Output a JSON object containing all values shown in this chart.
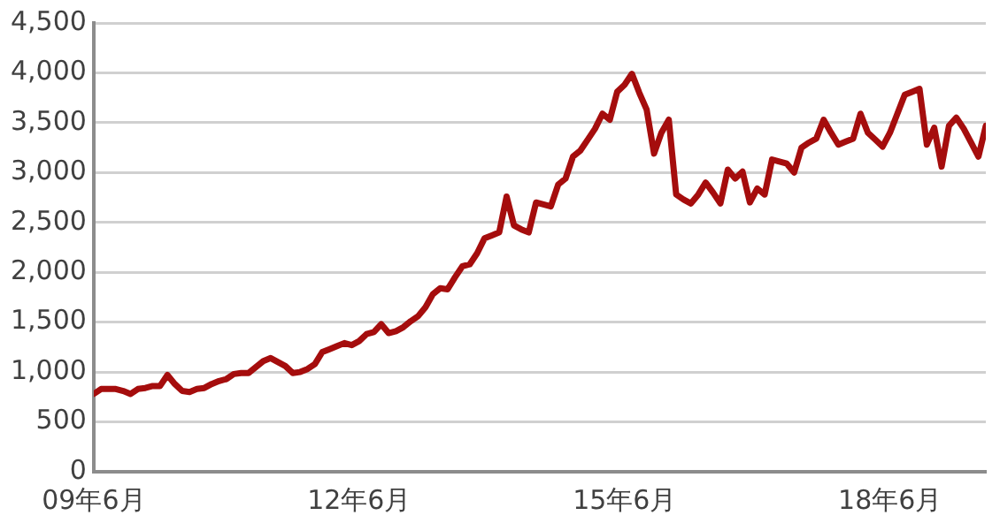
{
  "chart_data": {
    "type": "line",
    "categories": [
      "09年6月",
      null,
      null,
      null,
      null,
      null,
      null,
      null,
      null,
      null,
      null,
      null,
      null,
      null,
      null,
      null,
      null,
      null,
      null,
      null,
      null,
      null,
      null,
      null,
      null,
      null,
      null,
      null,
      null,
      null,
      null,
      null,
      null,
      null,
      null,
      null,
      "12年6月",
      null,
      null,
      null,
      null,
      null,
      null,
      null,
      null,
      null,
      null,
      null,
      null,
      null,
      null,
      null,
      null,
      null,
      null,
      null,
      null,
      null,
      null,
      null,
      null,
      null,
      null,
      null,
      null,
      null,
      null,
      null,
      null,
      null,
      null,
      null,
      "15年6月",
      null,
      null,
      null,
      null,
      null,
      null,
      null,
      null,
      null,
      null,
      null,
      null,
      null,
      null,
      null,
      null,
      null,
      null,
      null,
      null,
      null,
      null,
      null,
      null,
      null,
      null,
      null,
      null,
      null,
      null,
      null,
      null,
      null,
      null,
      null,
      "18年6月",
      null,
      null,
      null,
      null,
      null,
      null,
      null,
      null,
      null,
      null,
      null,
      null,
      null
    ],
    "series": [
      {
        "color": "#a50d0d",
        "values": [
          780,
          830,
          830,
          830,
          810,
          780,
          830,
          840,
          860,
          860,
          970,
          880,
          810,
          800,
          830,
          840,
          880,
          910,
          930,
          980,
          990,
          990,
          1050,
          1110,
          1140,
          1100,
          1060,
          990,
          1000,
          1030,
          1080,
          1200,
          1230,
          1260,
          1290,
          1270,
          1310,
          1380,
          1400,
          1480,
          1390,
          1410,
          1450,
          1510,
          1560,
          1650,
          1780,
          1840,
          1830,
          1950,
          2060,
          2080,
          2190,
          2340,
          2370,
          2400,
          2760,
          2470,
          2430,
          2400,
          2700,
          2680,
          2660,
          2880,
          2940,
          3160,
          3220,
          3330,
          3440,
          3590,
          3530,
          3810,
          3880,
          3990,
          3800,
          3630,
          3190,
          3400,
          3530,
          2780,
          2730,
          2690,
          2780,
          2900,
          2800,
          2690,
          3030,
          2940,
          3010,
          2700,
          2840,
          2780,
          3130,
          3110,
          3090,
          3000,
          3250,
          3300,
          3340,
          3530,
          3400,
          3280,
          3310,
          3340,
          3590,
          3400,
          3330,
          3260,
          3400,
          3590,
          3780,
          3810,
          3840,
          3280,
          3450,
          3060,
          3470,
          3550,
          3440,
          3300,
          3160,
          3470
        ]
      }
    ],
    "ylim": [
      0,
      4500
    ],
    "yticks": [
      0,
      500,
      {
        "value": 1000,
        "label": "1,000"
      },
      {
        "value": 1500,
        "label": "1,500"
      },
      {
        "value": 2000,
        "label": "2,000"
      },
      {
        "value": 2500,
        "label": "2,500"
      },
      {
        "value": 3000,
        "label": "3,000"
      },
      {
        "value": 3500,
        "label": "3,500"
      },
      {
        "value": 4000,
        "label": "4,000"
      },
      {
        "value": 4500,
        "label": "4,500"
      }
    ],
    "grid": "y",
    "legend": false,
    "marker": "none",
    "line_style": "solid"
  }
}
